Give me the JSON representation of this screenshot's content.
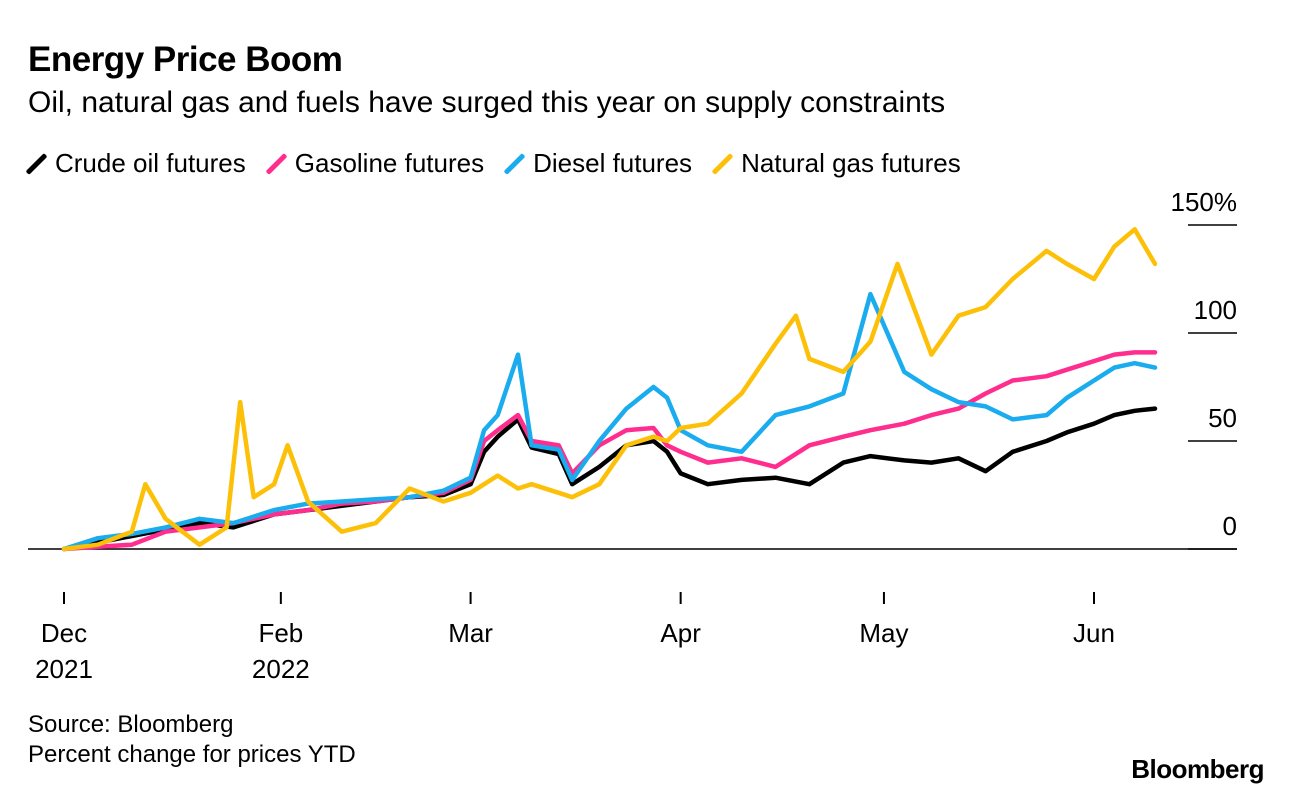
{
  "title": "Energy Price Boom",
  "subtitle": "Oil, natural gas and fuels have surged this year on supply constraints",
  "source_lines": [
    "Source: Bloomberg",
    "Percent change for prices YTD"
  ],
  "brand": "Bloomberg",
  "chart_data": {
    "type": "line",
    "title": "Energy Price Boom",
    "subtitle": "Oil, natural gas and fuels have surged this year on supply constraints",
    "ylabel": "",
    "xlabel": "",
    "ylim": [
      0,
      150
    ],
    "yticks": [
      {
        "value": 0,
        "label": "0"
      },
      {
        "value": 50,
        "label": "50"
      },
      {
        "value": 100,
        "label": "100"
      },
      {
        "value": 150,
        "label": "150%"
      }
    ],
    "xlim": [
      "2021-12-31",
      "2022-06-10"
    ],
    "xticks": [
      {
        "date": "2021-12-31",
        "lines": [
          "Dec",
          "2021"
        ]
      },
      {
        "date": "2022-02-01",
        "lines": [
          "Feb",
          "2022"
        ]
      },
      {
        "date": "2022-03-01",
        "lines": [
          "Mar"
        ]
      },
      {
        "date": "2022-04-01",
        "lines": [
          "Apr"
        ]
      },
      {
        "date": "2022-05-01",
        "lines": [
          "May"
        ]
      },
      {
        "date": "2022-06-01",
        "lines": [
          "Jun"
        ]
      }
    ],
    "legend_position": "top",
    "grid": false,
    "series": [
      {
        "name": "Crude oil futures",
        "color": "#000000",
        "points": [
          [
            "2021-12-31",
            0
          ],
          [
            "2022-01-05",
            3
          ],
          [
            "2022-01-10",
            6
          ],
          [
            "2022-01-15",
            9
          ],
          [
            "2022-01-20",
            12
          ],
          [
            "2022-01-25",
            10
          ],
          [
            "2022-01-31",
            16
          ],
          [
            "2022-02-05",
            18
          ],
          [
            "2022-02-10",
            20
          ],
          [
            "2022-02-15",
            22
          ],
          [
            "2022-02-20",
            24
          ],
          [
            "2022-02-25",
            25
          ],
          [
            "2022-03-01",
            30
          ],
          [
            "2022-03-03",
            45
          ],
          [
            "2022-03-05",
            52
          ],
          [
            "2022-03-08",
            60
          ],
          [
            "2022-03-10",
            47
          ],
          [
            "2022-03-14",
            44
          ],
          [
            "2022-03-16",
            30
          ],
          [
            "2022-03-20",
            38
          ],
          [
            "2022-03-24",
            48
          ],
          [
            "2022-03-28",
            50
          ],
          [
            "2022-03-30",
            45
          ],
          [
            "2022-04-01",
            35
          ],
          [
            "2022-04-05",
            30
          ],
          [
            "2022-04-10",
            32
          ],
          [
            "2022-04-15",
            33
          ],
          [
            "2022-04-20",
            30
          ],
          [
            "2022-04-25",
            40
          ],
          [
            "2022-04-29",
            43
          ],
          [
            "2022-05-04",
            41
          ],
          [
            "2022-05-08",
            40
          ],
          [
            "2022-05-12",
            42
          ],
          [
            "2022-05-16",
            36
          ],
          [
            "2022-05-20",
            45
          ],
          [
            "2022-05-25",
            50
          ],
          [
            "2022-05-28",
            54
          ],
          [
            "2022-06-01",
            58
          ],
          [
            "2022-06-04",
            62
          ],
          [
            "2022-06-07",
            64
          ],
          [
            "2022-06-10",
            65
          ]
        ]
      },
      {
        "name": "Gasoline futures",
        "color": "#ff2d8e",
        "points": [
          [
            "2021-12-31",
            0
          ],
          [
            "2022-01-05",
            1
          ],
          [
            "2022-01-10",
            2
          ],
          [
            "2022-01-15",
            8
          ],
          [
            "2022-01-20",
            10
          ],
          [
            "2022-01-25",
            12
          ],
          [
            "2022-01-31",
            16
          ],
          [
            "2022-02-05",
            18
          ],
          [
            "2022-02-10",
            21
          ],
          [
            "2022-02-15",
            22
          ],
          [
            "2022-02-20",
            24
          ],
          [
            "2022-02-25",
            26
          ],
          [
            "2022-03-01",
            32
          ],
          [
            "2022-03-03",
            50
          ],
          [
            "2022-03-05",
            55
          ],
          [
            "2022-03-08",
            62
          ],
          [
            "2022-03-10",
            50
          ],
          [
            "2022-03-14",
            48
          ],
          [
            "2022-03-16",
            35
          ],
          [
            "2022-03-20",
            48
          ],
          [
            "2022-03-24",
            55
          ],
          [
            "2022-03-28",
            56
          ],
          [
            "2022-03-30",
            48
          ],
          [
            "2022-04-01",
            45
          ],
          [
            "2022-04-05",
            40
          ],
          [
            "2022-04-10",
            42
          ],
          [
            "2022-04-15",
            38
          ],
          [
            "2022-04-20",
            48
          ],
          [
            "2022-04-25",
            52
          ],
          [
            "2022-04-29",
            55
          ],
          [
            "2022-05-04",
            58
          ],
          [
            "2022-05-08",
            62
          ],
          [
            "2022-05-12",
            65
          ],
          [
            "2022-05-16",
            72
          ],
          [
            "2022-05-20",
            78
          ],
          [
            "2022-05-25",
            80
          ],
          [
            "2022-05-28",
            83
          ],
          [
            "2022-06-01",
            87
          ],
          [
            "2022-06-04",
            90
          ],
          [
            "2022-06-07",
            91
          ],
          [
            "2022-06-10",
            91
          ]
        ]
      },
      {
        "name": "Diesel futures",
        "color": "#1aacee",
        "points": [
          [
            "2021-12-31",
            0
          ],
          [
            "2022-01-05",
            5
          ],
          [
            "2022-01-10",
            7
          ],
          [
            "2022-01-15",
            10
          ],
          [
            "2022-01-20",
            14
          ],
          [
            "2022-01-25",
            12
          ],
          [
            "2022-01-31",
            18
          ],
          [
            "2022-02-05",
            21
          ],
          [
            "2022-02-10",
            22
          ],
          [
            "2022-02-15",
            23
          ],
          [
            "2022-02-20",
            24
          ],
          [
            "2022-02-25",
            27
          ],
          [
            "2022-03-01",
            33
          ],
          [
            "2022-03-03",
            55
          ],
          [
            "2022-03-05",
            62
          ],
          [
            "2022-03-08",
            90
          ],
          [
            "2022-03-10",
            48
          ],
          [
            "2022-03-14",
            46
          ],
          [
            "2022-03-16",
            32
          ],
          [
            "2022-03-20",
            50
          ],
          [
            "2022-03-24",
            65
          ],
          [
            "2022-03-28",
            75
          ],
          [
            "2022-03-30",
            70
          ],
          [
            "2022-04-01",
            55
          ],
          [
            "2022-04-05",
            48
          ],
          [
            "2022-04-10",
            45
          ],
          [
            "2022-04-15",
            62
          ],
          [
            "2022-04-20",
            66
          ],
          [
            "2022-04-25",
            72
          ],
          [
            "2022-04-29",
            118
          ],
          [
            "2022-05-04",
            82
          ],
          [
            "2022-05-08",
            74
          ],
          [
            "2022-05-12",
            68
          ],
          [
            "2022-05-16",
            66
          ],
          [
            "2022-05-20",
            60
          ],
          [
            "2022-05-25",
            62
          ],
          [
            "2022-05-28",
            70
          ],
          [
            "2022-06-01",
            78
          ],
          [
            "2022-06-04",
            84
          ],
          [
            "2022-06-07",
            86
          ],
          [
            "2022-06-10",
            84
          ]
        ]
      },
      {
        "name": "Natural gas futures",
        "color": "#fdc009",
        "points": [
          [
            "2021-12-31",
            0
          ],
          [
            "2022-01-05",
            2
          ],
          [
            "2022-01-10",
            8
          ],
          [
            "2022-01-12",
            30
          ],
          [
            "2022-01-15",
            14
          ],
          [
            "2022-01-20",
            2
          ],
          [
            "2022-01-24",
            10
          ],
          [
            "2022-01-26",
            68
          ],
          [
            "2022-01-28",
            24
          ],
          [
            "2022-01-31",
            30
          ],
          [
            "2022-02-02",
            48
          ],
          [
            "2022-02-05",
            22
          ],
          [
            "2022-02-10",
            8
          ],
          [
            "2022-02-15",
            12
          ],
          [
            "2022-02-20",
            28
          ],
          [
            "2022-02-25",
            22
          ],
          [
            "2022-03-01",
            26
          ],
          [
            "2022-03-03",
            30
          ],
          [
            "2022-03-05",
            34
          ],
          [
            "2022-03-08",
            28
          ],
          [
            "2022-03-10",
            30
          ],
          [
            "2022-03-14",
            26
          ],
          [
            "2022-03-16",
            24
          ],
          [
            "2022-03-20",
            30
          ],
          [
            "2022-03-24",
            48
          ],
          [
            "2022-03-28",
            52
          ],
          [
            "2022-03-30",
            50
          ],
          [
            "2022-04-01",
            56
          ],
          [
            "2022-04-05",
            58
          ],
          [
            "2022-04-10",
            72
          ],
          [
            "2022-04-15",
            95
          ],
          [
            "2022-04-18",
            108
          ],
          [
            "2022-04-20",
            88
          ],
          [
            "2022-04-25",
            82
          ],
          [
            "2022-04-29",
            96
          ],
          [
            "2022-05-03",
            132
          ],
          [
            "2022-05-08",
            90
          ],
          [
            "2022-05-12",
            108
          ],
          [
            "2022-05-16",
            112
          ],
          [
            "2022-05-20",
            125
          ],
          [
            "2022-05-25",
            138
          ],
          [
            "2022-05-28",
            132
          ],
          [
            "2022-06-01",
            125
          ],
          [
            "2022-06-04",
            140
          ],
          [
            "2022-06-07",
            148
          ],
          [
            "2022-06-10",
            132
          ]
        ]
      }
    ]
  }
}
